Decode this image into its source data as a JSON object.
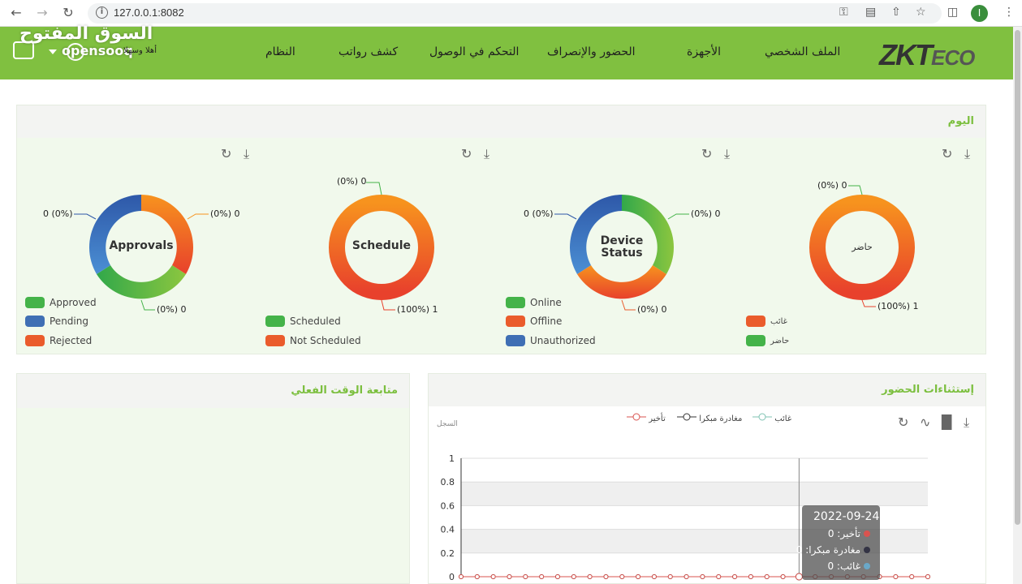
{
  "browser": {
    "url": "127.0.0.1:8082",
    "profile_initial": "I"
  },
  "watermark": {
    "arabic": "السوق المفتوح",
    "english": "opensooq"
  },
  "header": {
    "welcome": "أهلا وسهلا",
    "menu": [
      "النظام",
      "كشف رواتب",
      "التحكم في الوصول",
      "الحضور والإنصراف",
      "الأجهزة",
      "الملف الشخصي"
    ]
  },
  "today": {
    "title": "اليوم",
    "charts": [
      {
        "center": "Approvals",
        "labels": {
          "right": "(0%) 0",
          "left": "0 (0%)",
          "bottom": "(0%) 0"
        },
        "legend": [
          {
            "label": "Approved",
            "color": "#44b349"
          },
          {
            "label": "Pending",
            "color": "#3f6fb4"
          },
          {
            "label": "Rejected",
            "color": "#ea5c2c"
          }
        ]
      },
      {
        "center": "Schedule",
        "labels": {
          "top": "(0%) 0",
          "bottom": "(100%) 1"
        },
        "legend": [
          {
            "label": "Scheduled",
            "color": "#44b349"
          },
          {
            "label": "Not Scheduled",
            "color": "#ea5c2c"
          }
        ]
      },
      {
        "center": "Device Status",
        "center_lines": [
          "Device",
          "Status"
        ],
        "labels": {
          "right": "(0%) 0",
          "left": "0 (0%)",
          "bottom": "(0%) 0"
        },
        "legend": [
          {
            "label": "Online",
            "color": "#44b349"
          },
          {
            "label": "Offline",
            "color": "#ea5c2c"
          },
          {
            "label": "Unauthorized",
            "color": "#3f6fb4"
          }
        ]
      },
      {
        "center": "حاضر",
        "labels": {
          "top": "(0%) 0",
          "bottom": "(100%) 1"
        },
        "legend": [
          {
            "label": "غائب",
            "color": "#ea5c2c"
          },
          {
            "label": "حاضر",
            "color": "#44b349"
          }
        ]
      }
    ]
  },
  "realtime": {
    "title": "متابعة الوقت الفعلي"
  },
  "exceptions": {
    "title": "إستثناءات الحضور",
    "legend": [
      {
        "label": "غائب",
        "color": "#7fc3b3"
      },
      {
        "label": "مغادرة مبكرا",
        "color": "#333333"
      },
      {
        "label": "تأخير",
        "color": "#d9534f"
      }
    ],
    "y_axis_label": "السجل",
    "tooltip": {
      "date": "2022-09-24",
      "rows": [
        {
          "label": "تأخير",
          "value": "0",
          "color": "#d9534f"
        },
        {
          "label": "مغادرة مبكرا",
          "value": "0",
          "color": "#333344"
        },
        {
          "label": "غائب",
          "value": "0",
          "color": "#6aa8c8"
        }
      ]
    }
  },
  "chart_data": [
    {
      "type": "pie",
      "title": "Approvals",
      "categories": [
        "Approved",
        "Pending",
        "Rejected"
      ],
      "values": [
        0,
        0,
        0
      ]
    },
    {
      "type": "pie",
      "title": "Schedule",
      "categories": [
        "Scheduled",
        "Not Scheduled"
      ],
      "values": [
        0,
        1
      ]
    },
    {
      "type": "pie",
      "title": "Device Status",
      "categories": [
        "Online",
        "Offline",
        "Unauthorized"
      ],
      "values": [
        0,
        0,
        0
      ]
    },
    {
      "type": "pie",
      "title": "حاضر",
      "categories": [
        "غائب",
        "حاضر"
      ],
      "values": [
        1,
        0
      ]
    },
    {
      "type": "line",
      "title": "إستثناءات الحضور",
      "ylabel": "السجل",
      "ylim": [
        0,
        1
      ],
      "yticks": [
        "0",
        "0.2",
        "0.4",
        "0.6",
        "0.8",
        "1"
      ],
      "series": [
        {
          "name": "غائب",
          "values": [
            0,
            0,
            0,
            0,
            0,
            0,
            0,
            0,
            0,
            0,
            0,
            0,
            0,
            0,
            0,
            0,
            0,
            0,
            0,
            0,
            0,
            0,
            0,
            0,
            0,
            0,
            0,
            0,
            0,
            0
          ]
        },
        {
          "name": "مغادرة مبكرا",
          "values": [
            0,
            0,
            0,
            0,
            0,
            0,
            0,
            0,
            0,
            0,
            0,
            0,
            0,
            0,
            0,
            0,
            0,
            0,
            0,
            0,
            0,
            0,
            0,
            0,
            0,
            0,
            0,
            0,
            0,
            0
          ]
        },
        {
          "name": "تأخير",
          "values": [
            0,
            0,
            0,
            0,
            0,
            0,
            0,
            0,
            0,
            0,
            0,
            0,
            0,
            0,
            0,
            0,
            0,
            0,
            0,
            0,
            0,
            0,
            0,
            0,
            0,
            0,
            0,
            0,
            0,
            0
          ]
        }
      ],
      "highlight": {
        "date": "2022-09-24",
        "index": 21
      }
    }
  ]
}
